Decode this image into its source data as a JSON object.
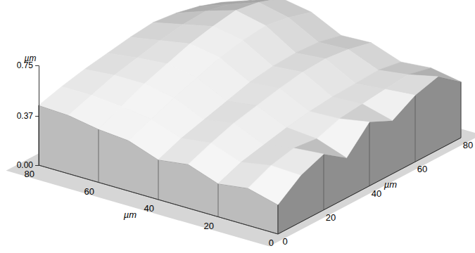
{
  "chart_data": {
    "type": "surface",
    "xlabel": "µm",
    "ylabel": "µm",
    "zlabel": "µm",
    "x": [
      0,
      10,
      20,
      30,
      40,
      50,
      60,
      70,
      80
    ],
    "y": [
      0,
      10,
      20,
      30,
      40,
      50,
      60,
      70,
      80
    ],
    "z": [
      [
        0.22,
        0.28,
        0.25,
        0.33,
        0.3,
        0.38,
        0.4,
        0.44,
        0.45
      ],
      [
        0.35,
        0.36,
        0.32,
        0.4,
        0.37,
        0.45,
        0.48,
        0.5,
        0.5
      ],
      [
        0.42,
        0.4,
        0.36,
        0.46,
        0.42,
        0.52,
        0.56,
        0.56,
        0.54
      ],
      [
        0.3,
        0.38,
        0.4,
        0.5,
        0.47,
        0.58,
        0.62,
        0.6,
        0.57
      ],
      [
        0.48,
        0.44,
        0.43,
        0.54,
        0.52,
        0.64,
        0.68,
        0.64,
        0.6
      ],
      [
        0.4,
        0.46,
        0.45,
        0.57,
        0.55,
        0.68,
        0.72,
        0.67,
        0.62
      ],
      [
        0.5,
        0.48,
        0.46,
        0.58,
        0.56,
        0.7,
        0.75,
        0.68,
        0.6
      ],
      [
        0.55,
        0.5,
        0.47,
        0.56,
        0.55,
        0.67,
        0.72,
        0.64,
        0.56
      ],
      [
        0.42,
        0.46,
        0.44,
        0.52,
        0.51,
        0.62,
        0.66,
        0.58,
        0.5
      ]
    ],
    "xlim": [
      0,
      80
    ],
    "ylim": [
      0,
      80
    ],
    "zlim": [
      0,
      0.75
    ],
    "xticks": [
      0,
      20,
      40,
      60,
      80
    ],
    "yticks": [
      0,
      20,
      40,
      60,
      80
    ],
    "zticks": [
      {
        "value": 0,
        "label": "0.00"
      },
      {
        "value": 0.37,
        "label": "0.37"
      },
      {
        "value": 0.75,
        "label": "0.75"
      }
    ],
    "color": "#b4b4b4"
  }
}
